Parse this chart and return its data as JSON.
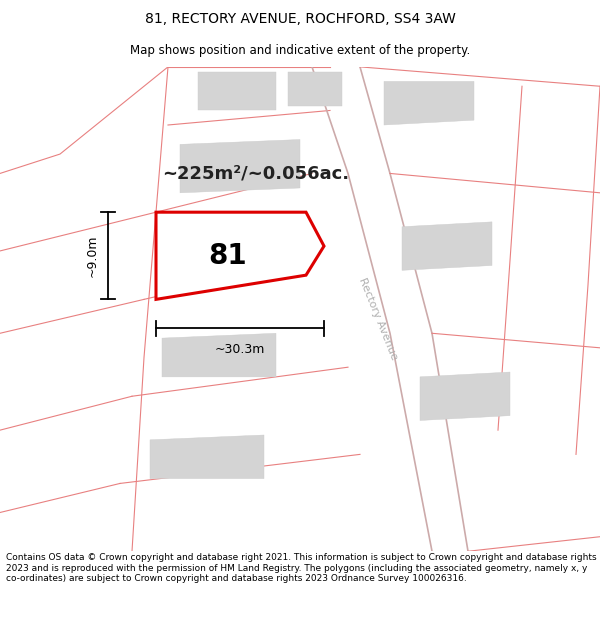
{
  "title": "81, RECTORY AVENUE, ROCHFORD, SS4 3AW",
  "subtitle": "Map shows position and indicative extent of the property.",
  "footer": "Contains OS data © Crown copyright and database right 2021. This information is subject to Crown copyright and database rights 2023 and is reproduced with the permission of HM Land Registry. The polygons (including the associated geometry, namely x, y co-ordinates) are subject to Crown copyright and database rights 2023 Ordnance Survey 100026316.",
  "area_label": "~225m²/~0.056ac.",
  "number_label": "81",
  "width_label": "~30.3m",
  "height_label": "~9.0m",
  "bg_color": "#ffffff",
  "map_bg": "#ffffff",
  "plot_fill": "#ffffff",
  "plot_edge": "#dd0000",
  "road_color": "#e88080",
  "road_color2": "#ccaaaa",
  "building_color": "#d4d4d4",
  "building_edge": "#cccccc",
  "title_fontsize": 10,
  "subtitle_fontsize": 8.5,
  "footer_fontsize": 6.5,
  "area_fontsize": 13,
  "number_fontsize": 20,
  "dim_fontsize": 9,
  "street_fontsize": 8
}
